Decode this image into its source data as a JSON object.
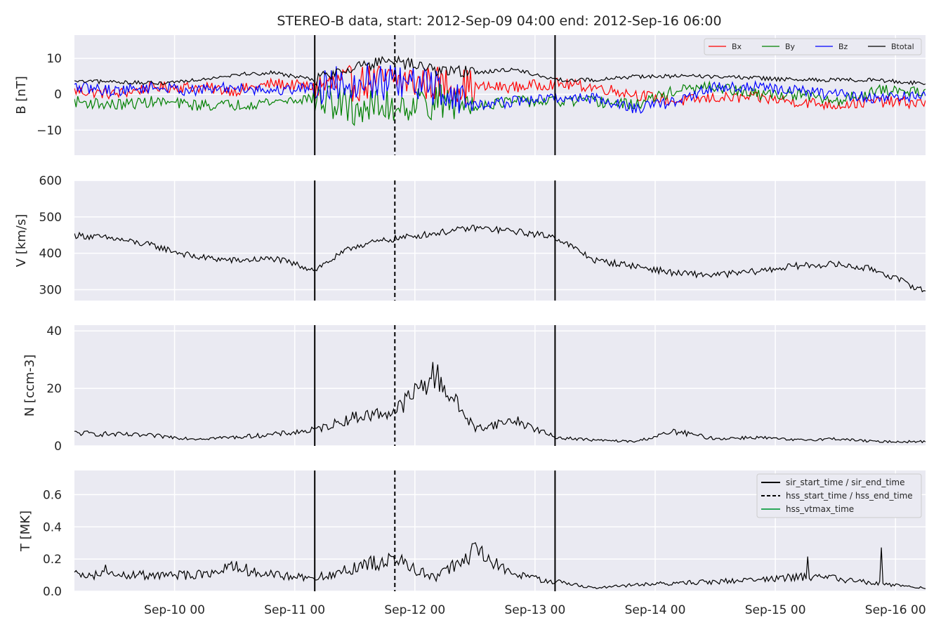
{
  "chart_data": {
    "type": "line",
    "title": "STEREO-B data, start: 2012-Sep-09 04:00  end: 2012-Sep-16 06:00",
    "x_range": [
      "2012-09-09 04:00",
      "2012-09-16 06:00"
    ],
    "x_ticks": [
      "Sep-10 00",
      "Sep-11 00",
      "Sep-12 00",
      "Sep-13 00",
      "Sep-14 00",
      "Sep-15 00",
      "Sep-16 00"
    ],
    "grid": true,
    "background": "#eaeaf2",
    "event_times": {
      "sir_start_time": "2012-09-11 04:00",
      "hss_start_time": "2012-09-11 20:00",
      "sir_end_time": "2012-09-13 04:00"
    },
    "legend_events": {
      "placement": "top-right of bottom panel",
      "entries": [
        {
          "label": "sir_start_time / sir_end_time",
          "style": "solid",
          "color": "#000000"
        },
        {
          "label": "hss_start_time / hss_end_time",
          "style": "dashed",
          "color": "#000000"
        },
        {
          "label": "hss_vtmax_time",
          "style": "solid",
          "color": "#2ca85a"
        }
      ]
    },
    "panels": [
      {
        "ylabel": "B [nT]",
        "ylim": [
          -17,
          16.5
        ],
        "yticks": [
          10,
          0,
          -10
        ],
        "ytick_labels": [
          "10",
          "0",
          "−10"
        ],
        "legend": {
          "placement": "top-right",
          "entries": [
            "Bx",
            "By",
            "Bz",
            "Btotal"
          ]
        },
        "series": [
          {
            "name": "Bx",
            "color": "#ff0000",
            "x": [
              "2012-09-09 04:00",
              "2012-09-09 12:00",
              "2012-09-09 20:00",
              "2012-09-10 04:00",
              "2012-09-10 12:00",
              "2012-09-10 20:00",
              "2012-09-11 04:00",
              "2012-09-11 12:00",
              "2012-09-11 20:00",
              "2012-09-12 04:00",
              "2012-09-12 12:00",
              "2012-09-12 20:00",
              "2012-09-13 04:00",
              "2012-09-13 12:00",
              "2012-09-13 20:00",
              "2012-09-14 04:00",
              "2012-09-14 12:00",
              "2012-09-14 20:00",
              "2012-09-15 04:00",
              "2012-09-15 12:00",
              "2012-09-15 20:00",
              "2012-09-16 06:00"
            ],
            "y": [
              1,
              0,
              2,
              2,
              1,
              3,
              2,
              3,
              4,
              3,
              2,
              2,
              3,
              2,
              0,
              -2,
              -1,
              -1,
              -2,
              -3,
              -2,
              -2.5
            ]
          },
          {
            "name": "By",
            "color": "#008000",
            "x": [
              "2012-09-09 04:00",
              "2012-09-09 12:00",
              "2012-09-09 20:00",
              "2012-09-10 04:00",
              "2012-09-10 12:00",
              "2012-09-10 20:00",
              "2012-09-11 04:00",
              "2012-09-11 12:00",
              "2012-09-11 20:00",
              "2012-09-12 04:00",
              "2012-09-12 12:00",
              "2012-09-12 20:00",
              "2012-09-13 04:00",
              "2012-09-13 12:00",
              "2012-09-13 20:00",
              "2012-09-14 04:00",
              "2012-09-14 12:00",
              "2012-09-14 20:00",
              "2012-09-15 04:00",
              "2012-09-15 12:00",
              "2012-09-15 20:00",
              "2012-09-16 06:00"
            ],
            "y": [
              -2,
              -3,
              -2,
              -3,
              -3,
              -2,
              -1,
              -4,
              -3,
              -2,
              -3,
              -2,
              -2,
              -2,
              -3,
              1,
              2,
              0,
              0,
              -2,
              1,
              1
            ]
          },
          {
            "name": "Bz",
            "color": "#0000ff",
            "x": [
              "2012-09-09 04:00",
              "2012-09-09 12:00",
              "2012-09-09 20:00",
              "2012-09-10 04:00",
              "2012-09-10 12:00",
              "2012-09-10 20:00",
              "2012-09-11 04:00",
              "2012-09-11 12:00",
              "2012-09-11 20:00",
              "2012-09-12 04:00",
              "2012-09-12 12:00",
              "2012-09-12 20:00",
              "2012-09-13 04:00",
              "2012-09-13 12:00",
              "2012-09-13 20:00",
              "2012-09-14 04:00",
              "2012-09-14 12:00",
              "2012-09-14 20:00",
              "2012-09-15 04:00",
              "2012-09-15 12:00",
              "2012-09-15 20:00",
              "2012-09-16 06:00"
            ],
            "y": [
              2,
              1,
              2,
              1,
              2,
              1,
              2,
              4,
              3,
              2,
              -3,
              -2,
              -1,
              -1,
              -4,
              -2,
              2,
              2,
              1,
              0,
              -1,
              -0.5
            ]
          },
          {
            "name": "Btotal",
            "color": "#000000",
            "x": [
              "2012-09-09 04:00",
              "2012-09-09 12:00",
              "2012-09-09 20:00",
              "2012-09-10 04:00",
              "2012-09-10 12:00",
              "2012-09-10 20:00",
              "2012-09-11 04:00",
              "2012-09-11 12:00",
              "2012-09-11 20:00",
              "2012-09-12 04:00",
              "2012-09-12 12:00",
              "2012-09-12 20:00",
              "2012-09-13 04:00",
              "2012-09-13 12:00",
              "2012-09-13 20:00",
              "2012-09-14 04:00",
              "2012-09-14 12:00",
              "2012-09-14 20:00",
              "2012-09-15 04:00",
              "2012-09-15 12:00",
              "2012-09-15 20:00",
              "2012-09-16 06:00"
            ],
            "y": [
              3.5,
              3.5,
              3,
              4,
              5.5,
              6,
              4,
              8,
              9,
              7,
              6,
              7,
              4,
              4,
              5,
              5,
              5,
              4.5,
              4,
              4,
              4,
              3
            ]
          }
        ]
      },
      {
        "ylabel": "V [km/s]",
        "ylim": [
          270,
          600
        ],
        "yticks": [
          600,
          500,
          400,
          300
        ],
        "series": [
          {
            "name": "V",
            "color": "#000000",
            "x": [
              "2012-09-09 04:00",
              "2012-09-09 12:00",
              "2012-09-09 20:00",
              "2012-09-10 04:00",
              "2012-09-10 12:00",
              "2012-09-10 20:00",
              "2012-09-11 04:00",
              "2012-09-11 12:00",
              "2012-09-11 20:00",
              "2012-09-12 04:00",
              "2012-09-12 12:00",
              "2012-09-12 20:00",
              "2012-09-13 04:00",
              "2012-09-13 12:00",
              "2012-09-13 20:00",
              "2012-09-14 04:00",
              "2012-09-14 12:00",
              "2012-09-14 20:00",
              "2012-09-15 04:00",
              "2012-09-15 12:00",
              "2012-09-15 20:00",
              "2012-09-16 06:00"
            ],
            "y": [
              450,
              440,
              420,
              390,
              380,
              385,
              355,
              420,
              440,
              455,
              470,
              460,
              445,
              380,
              365,
              345,
              340,
              350,
              365,
              370,
              355,
              295
            ]
          }
        ]
      },
      {
        "ylabel": "N [ccm-3]",
        "ylim": [
          0,
          42
        ],
        "yticks": [
          40,
          20,
          0
        ],
        "series": [
          {
            "name": "N",
            "color": "#000000",
            "x": [
              "2012-09-09 04:00",
              "2012-09-09 12:00",
              "2012-09-09 20:00",
              "2012-09-10 04:00",
              "2012-09-10 12:00",
              "2012-09-10 20:00",
              "2012-09-11 04:00",
              "2012-09-11 12:00",
              "2012-09-11 20:00",
              "2012-09-12 04:00",
              "2012-09-12 12:00",
              "2012-09-12 20:00",
              "2012-09-13 04:00",
              "2012-09-13 12:00",
              "2012-09-13 20:00",
              "2012-09-14 04:00",
              "2012-09-14 12:00",
              "2012-09-14 20:00",
              "2012-09-15 04:00",
              "2012-09-15 12:00",
              "2012-09-15 20:00",
              "2012-09-16 06:00"
            ],
            "y": [
              4.5,
              4,
              3.5,
              2.5,
              3,
              4,
              5.5,
              10,
              12,
              25,
              6,
              9,
              3,
              2,
              1.5,
              5,
              2.5,
              3,
              2,
              2.5,
              1.5,
              1.5
            ]
          }
        ]
      },
      {
        "ylabel": "T [MK]",
        "ylim": [
          0,
          0.75
        ],
        "yticks": [
          0.6,
          0.4,
          0.2,
          0.0
        ],
        "ytick_labels": [
          "0.6",
          "0.4",
          "0.2",
          "0.0"
        ],
        "series": [
          {
            "name": "T",
            "color": "#000000",
            "x": [
              "2012-09-09 04:00",
              "2012-09-09 12:00",
              "2012-09-09 20:00",
              "2012-09-10 04:00",
              "2012-09-10 12:00",
              "2012-09-10 20:00",
              "2012-09-11 04:00",
              "2012-09-11 12:00",
              "2012-09-11 20:00",
              "2012-09-12 04:00",
              "2012-09-12 12:00",
              "2012-09-12 20:00",
              "2012-09-13 04:00",
              "2012-09-13 12:00",
              "2012-09-13 20:00",
              "2012-09-14 04:00",
              "2012-09-14 12:00",
              "2012-09-14 20:00",
              "2012-09-15 04:00",
              "2012-09-15 12:00",
              "2012-09-15 20:00",
              "2012-09-16 06:00"
            ],
            "y": [
              0.1,
              0.1,
              0.1,
              0.1,
              0.15,
              0.1,
              0.08,
              0.15,
              0.2,
              0.08,
              0.25,
              0.1,
              0.06,
              0.02,
              0.04,
              0.05,
              0.06,
              0.07,
              0.09,
              0.08,
              0.05,
              0.02
            ]
          }
        ]
      }
    ]
  }
}
